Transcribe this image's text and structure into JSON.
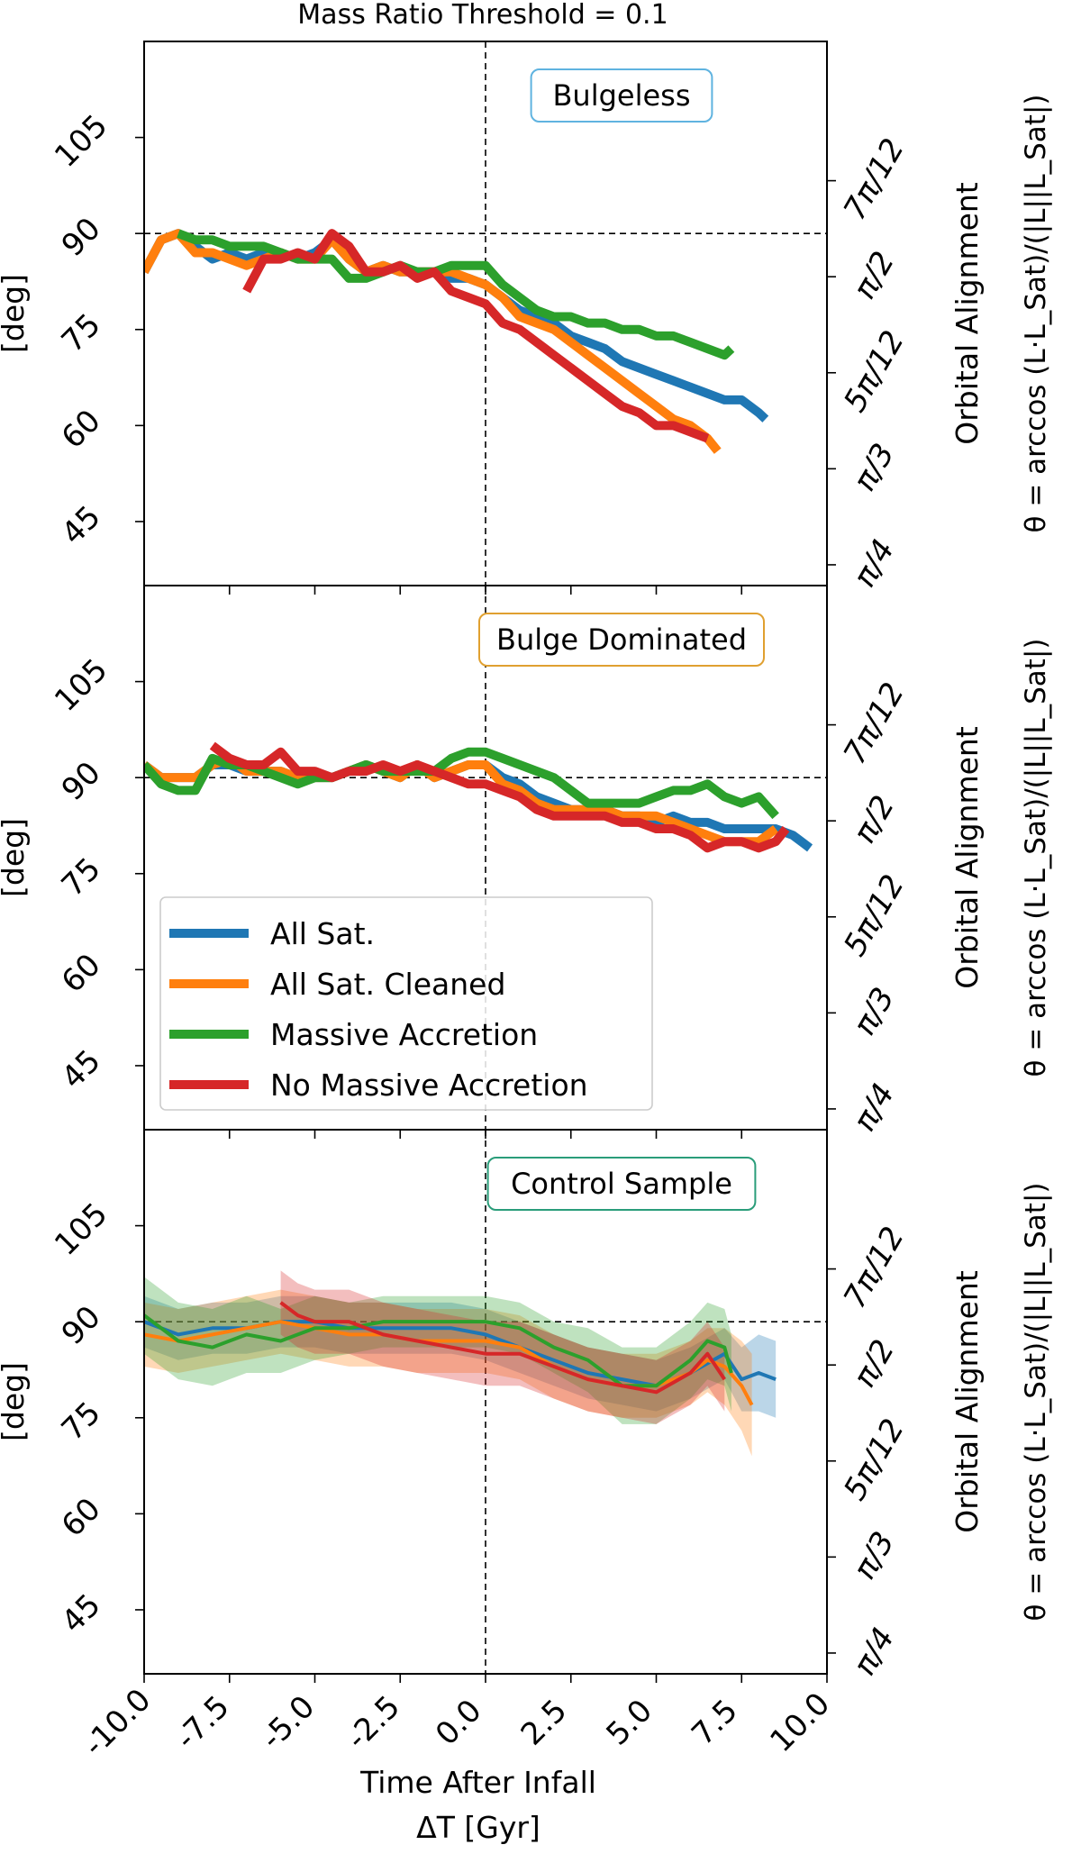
{
  "figure_title": "Mass Ratio Threshold = 0.1",
  "legend": {
    "placement": "lower-left of middle panel",
    "entries": [
      {
        "label": "All Sat.",
        "color": "#1f77b4"
      },
      {
        "label": "All Sat. Cleaned",
        "color": "#ff7f0e"
      },
      {
        "label": "Massive Accretion",
        "color": "#2ca02c"
      },
      {
        "label": "No Massive Accretion",
        "color": "#d62728"
      }
    ]
  },
  "chart_data": [
    {
      "type": "line",
      "panel_label": "Bulgeless",
      "panel_label_color": "#5fb3e0",
      "xlabel": "Time After Infall",
      "xunit": "ΔT [Gyr]",
      "ylabel": "[deg]",
      "ylabel_right": "Orbital Alignment",
      "ylabel_right_formula": "θ = arccos (L·L_Sat)/(|L||L_Sat|)",
      "xlim": [
        -10,
        10
      ],
      "ylim": [
        35,
        120
      ],
      "xticks": [
        -10.0,
        -7.5,
        -5.0,
        -2.5,
        0.0,
        2.5,
        5.0,
        7.5,
        10.0
      ],
      "yticks": [
        45,
        60,
        75,
        90,
        105
      ],
      "yticks_right": [
        {
          "value": 45,
          "label": "π/4"
        },
        {
          "value": 60,
          "label": "π/3"
        },
        {
          "value": 75,
          "label": "5π/12"
        },
        {
          "value": 90,
          "label": "π/2"
        },
        {
          "value": 105,
          "label": "7π/12"
        }
      ],
      "reference_lines": {
        "vertical_x": 0,
        "horizontal_y": 90
      },
      "grid": false,
      "series": [
        {
          "name": "All Sat.",
          "color": "#1f77b4",
          "x": [
            -10,
            -9.5,
            -9,
            -8.5,
            -8,
            -7.5,
            -7,
            -6.5,
            -6,
            -5.5,
            -5,
            -4.5,
            -4,
            -3.5,
            -3,
            -2.5,
            -2,
            -1.5,
            -1,
            -0.5,
            0,
            0.5,
            1,
            1.5,
            2,
            2.5,
            3,
            3.5,
            4,
            4.5,
            5,
            5.5,
            6,
            6.5,
            7,
            7.5,
            8,
            8.2
          ],
          "y": [
            84,
            89,
            90,
            88,
            86,
            87,
            86,
            87,
            87,
            86,
            87,
            89,
            86,
            84,
            85,
            84,
            84,
            84,
            83,
            83,
            82,
            80,
            78,
            77,
            76,
            74,
            73,
            72,
            70,
            69,
            68,
            67,
            66,
            65,
            64,
            64,
            62,
            61
          ]
        },
        {
          "name": "All Sat. Cleaned",
          "color": "#ff7f0e",
          "x": [
            -10,
            -9.5,
            -9,
            -8.5,
            -8,
            -7.5,
            -7,
            -6.5,
            -6,
            -5.5,
            -5,
            -4.5,
            -4,
            -3.5,
            -3,
            -2.5,
            -2,
            -1.5,
            -1,
            -0.5,
            0,
            0.5,
            1,
            1.5,
            2,
            2.5,
            3,
            3.5,
            4,
            4.5,
            5,
            5.5,
            6,
            6.5,
            6.8
          ],
          "y": [
            84,
            89,
            90,
            87,
            87,
            86,
            85,
            86,
            87,
            86,
            86,
            89,
            86,
            84,
            85,
            84,
            84,
            84,
            84,
            83,
            82,
            80,
            77,
            76,
            75,
            73,
            71,
            69,
            67,
            65,
            63,
            61,
            60,
            58,
            56
          ]
        },
        {
          "name": "Massive Accretion",
          "color": "#2ca02c",
          "x": [
            -9,
            -8.5,
            -8,
            -7.5,
            -7,
            -6.5,
            -6,
            -5.5,
            -5,
            -4.5,
            -4,
            -3.5,
            -3,
            -2.5,
            -2,
            -1.5,
            -1,
            -0.5,
            0,
            0.5,
            1,
            1.5,
            2,
            2.5,
            3,
            3.5,
            4,
            4.5,
            5,
            5.5,
            6,
            6.5,
            7,
            7.2
          ],
          "y": [
            90,
            89,
            89,
            88,
            88,
            88,
            87,
            86,
            86,
            86,
            83,
            83,
            84,
            85,
            84,
            84,
            85,
            85,
            85,
            82,
            80,
            78,
            77,
            77,
            76,
            76,
            75,
            75,
            74,
            74,
            73,
            72,
            71,
            72
          ]
        },
        {
          "name": "No Massive Accretion",
          "color": "#d62728",
          "x": [
            -7,
            -6.5,
            -6,
            -5.5,
            -5,
            -4.5,
            -4,
            -3.5,
            -3,
            -2.5,
            -2,
            -1.5,
            -1,
            -0.5,
            0,
            0.5,
            1,
            1.5,
            2,
            2.5,
            3,
            3.5,
            4,
            4.5,
            5,
            5.5,
            6,
            6.5
          ],
          "y": [
            81,
            86,
            86,
            87,
            86,
            90,
            88,
            84,
            84,
            85,
            83,
            84,
            81,
            80,
            79,
            76,
            75,
            73,
            71,
            69,
            67,
            65,
            63,
            62,
            60,
            60,
            59,
            58
          ]
        }
      ]
    },
    {
      "type": "line",
      "panel_label": "Bulge Dominated",
      "panel_label_color": "#e0a030",
      "xlabel": "Time After Infall",
      "xunit": "ΔT [Gyr]",
      "ylabel": "[deg]",
      "ylabel_right": "Orbital Alignment",
      "ylabel_right_formula": "θ = arccos (L·L_Sat)/(|L||L_Sat|)",
      "xlim": [
        -10,
        10
      ],
      "ylim": [
        35,
        120
      ],
      "xticks": [
        -10.0,
        -7.5,
        -5.0,
        -2.5,
        0.0,
        2.5,
        5.0,
        7.5,
        10.0
      ],
      "yticks": [
        45,
        60,
        75,
        90,
        105
      ],
      "yticks_right": [
        {
          "value": 45,
          "label": "π/4"
        },
        {
          "value": 60,
          "label": "π/3"
        },
        {
          "value": 75,
          "label": "5π/12"
        },
        {
          "value": 90,
          "label": "π/2"
        },
        {
          "value": 105,
          "label": "7π/12"
        }
      ],
      "reference_lines": {
        "vertical_x": 0,
        "horizontal_y": 90
      },
      "grid": false,
      "series": [
        {
          "name": "All Sat.",
          "color": "#1f77b4",
          "x": [
            -10,
            -9.5,
            -9,
            -8.5,
            -8,
            -7.5,
            -7,
            -6.5,
            -6,
            -5.5,
            -5,
            -4.5,
            -4,
            -3.5,
            -3,
            -2.5,
            -2,
            -1.5,
            -1,
            -0.5,
            0,
            0.5,
            1,
            1.5,
            2,
            2.5,
            3,
            3.5,
            4,
            4.5,
            5,
            5.5,
            6,
            6.5,
            7,
            7.5,
            8,
            8.5,
            9,
            9.5
          ],
          "y": [
            92,
            90,
            90,
            90,
            92,
            92,
            91,
            91,
            91,
            90,
            90,
            90,
            91,
            92,
            91,
            90,
            92,
            90,
            91,
            92,
            92,
            90,
            89,
            87,
            86,
            85,
            85,
            85,
            84,
            84,
            83,
            84,
            83,
            83,
            82,
            82,
            82,
            82,
            81,
            79
          ]
        },
        {
          "name": "All Sat. Cleaned",
          "color": "#ff7f0e",
          "x": [
            -10,
            -9.5,
            -9,
            -8.5,
            -8,
            -7.5,
            -7,
            -6.5,
            -6,
            -5.5,
            -5,
            -4.5,
            -4,
            -3.5,
            -3,
            -2.5,
            -2,
            -1.5,
            -1,
            -0.5,
            0,
            0.5,
            1,
            1.5,
            2,
            2.5,
            3,
            3.5,
            4,
            4.5,
            5,
            5.5,
            6,
            6.5,
            7,
            7.5,
            8,
            8.5
          ],
          "y": [
            92,
            90,
            90,
            90,
            92,
            93,
            91,
            91,
            91,
            90,
            90,
            90,
            91,
            92,
            91,
            90,
            92,
            90,
            91,
            92,
            92,
            89,
            88,
            86,
            85,
            85,
            85,
            85,
            84,
            84,
            84,
            83,
            82,
            81,
            80,
            80,
            80,
            82
          ]
        },
        {
          "name": "Massive Accretion",
          "color": "#2ca02c",
          "x": [
            -10,
            -9.5,
            -9,
            -8.5,
            -8,
            -7.5,
            -7,
            -6.5,
            -6,
            -5.5,
            -5,
            -4.5,
            -4,
            -3.5,
            -3,
            -2.5,
            -2,
            -1.5,
            -1,
            -0.5,
            0,
            0.5,
            1,
            1.5,
            2,
            2.5,
            3,
            3.5,
            4,
            4.5,
            5,
            5.5,
            6,
            6.5,
            7,
            7.5,
            8,
            8.5
          ],
          "y": [
            92,
            89,
            88,
            88,
            93,
            92,
            92,
            91,
            90,
            89,
            90,
            90,
            91,
            92,
            91,
            91,
            91,
            91,
            93,
            94,
            94,
            93,
            92,
            91,
            90,
            88,
            86,
            86,
            86,
            86,
            87,
            88,
            88,
            89,
            87,
            86,
            87,
            84
          ]
        },
        {
          "name": "No Massive Accretion",
          "color": "#d62728",
          "x": [
            -8,
            -7.5,
            -7,
            -6.5,
            -6,
            -5.5,
            -5,
            -4.5,
            -4,
            -3.5,
            -3,
            -2.5,
            -2,
            -1.5,
            -1,
            -0.5,
            0,
            0.5,
            1,
            1.5,
            2,
            2.5,
            3,
            3.5,
            4,
            4.5,
            5,
            5.5,
            6,
            6.5,
            7,
            7.5,
            8,
            8.5,
            8.8
          ],
          "y": [
            95,
            93,
            92,
            92,
            94,
            91,
            91,
            90,
            91,
            91,
            92,
            91,
            92,
            91,
            90,
            89,
            89,
            88,
            87,
            85,
            84,
            84,
            84,
            84,
            83,
            83,
            82,
            82,
            81,
            79,
            80,
            80,
            79,
            80,
            82
          ]
        }
      ]
    },
    {
      "type": "line",
      "panel_label": "Control Sample",
      "panel_label_color": "#2a9d7a",
      "xlabel": "Time After Infall",
      "xunit": "ΔT [Gyr]",
      "ylabel": "[deg]",
      "ylabel_right": "Orbital Alignment",
      "ylabel_right_formula": "θ = arccos (L·L_Sat)/(|L||L_Sat|)",
      "xlim": [
        -10,
        10
      ],
      "ylim": [
        35,
        120
      ],
      "xticks": [
        -10.0,
        -7.5,
        -5.0,
        -2.5,
        0.0,
        2.5,
        5.0,
        7.5,
        10.0
      ],
      "yticks": [
        45,
        60,
        75,
        90,
        105
      ],
      "yticks_right": [
        {
          "value": 45,
          "label": "π/4"
        },
        {
          "value": 60,
          "label": "π/3"
        },
        {
          "value": 75,
          "label": "5π/12"
        },
        {
          "value": 90,
          "label": "π/2"
        },
        {
          "value": 105,
          "label": "7π/12"
        }
      ],
      "reference_lines": {
        "vertical_x": 0,
        "horizontal_y": 90
      },
      "grid": false,
      "shaded_bands": true,
      "series": [
        {
          "name": "All Sat.",
          "color": "#1f77b4",
          "x": [
            -10,
            -9,
            -8,
            -7,
            -6,
            -5,
            -4,
            -3,
            -2,
            -1,
            0,
            1,
            2,
            3,
            4,
            5,
            6,
            7,
            7.5,
            8,
            8.5
          ],
          "y": [
            90,
            88,
            89,
            89,
            90,
            90,
            89,
            89,
            89,
            89,
            88,
            86,
            84,
            82,
            81,
            80,
            82,
            85,
            81,
            82,
            81
          ],
          "band": [
            4,
            4,
            4,
            4,
            4,
            4,
            4,
            4,
            4,
            4,
            4,
            4,
            4,
            4,
            4,
            4,
            4,
            4,
            5,
            6,
            6
          ]
        },
        {
          "name": "All Sat. Cleaned",
          "color": "#ff7f0e",
          "x": [
            -10,
            -9,
            -8,
            -7,
            -6,
            -5,
            -4,
            -3,
            -2,
            -1,
            0,
            1,
            2,
            3,
            4,
            5,
            6,
            6.5,
            7,
            7.5,
            7.8
          ],
          "y": [
            88,
            87,
            88,
            89,
            90,
            89,
            88,
            88,
            87,
            87,
            87,
            86,
            83,
            81,
            80,
            80,
            82,
            84,
            83,
            80,
            77
          ],
          "band": [
            5,
            5,
            5,
            5,
            5,
            5,
            5,
            5,
            5,
            5,
            5,
            5,
            5,
            5,
            5,
            5,
            5,
            5,
            6,
            7,
            8
          ]
        },
        {
          "name": "Massive Accretion",
          "color": "#2ca02c",
          "x": [
            -10,
            -9,
            -8,
            -7,
            -6,
            -5,
            -4,
            -3,
            -2,
            -1,
            0,
            1,
            2,
            3,
            4,
            5,
            6,
            6.5,
            7,
            7.2
          ],
          "y": [
            91,
            87,
            86,
            88,
            87,
            89,
            89,
            90,
            90,
            90,
            90,
            89,
            86,
            84,
            80,
            80,
            84,
            87,
            86,
            82
          ],
          "band": [
            6,
            6,
            6,
            6,
            5,
            5,
            4,
            4,
            4,
            4,
            4,
            4,
            4,
            5,
            6,
            6,
            6,
            6,
            6,
            6
          ]
        },
        {
          "name": "No Massive Accretion",
          "color": "#d62728",
          "x": [
            -6,
            -5.5,
            -5,
            -4,
            -3,
            -2,
            -1,
            0,
            1,
            2,
            3,
            4,
            5,
            6,
            6.5,
            7
          ],
          "y": [
            93,
            91,
            90,
            90,
            88,
            87,
            86,
            85,
            85,
            83,
            81,
            80,
            79,
            82,
            85,
            81
          ],
          "band": [
            5,
            5,
            5,
            5,
            5,
            5,
            5,
            5,
            5,
            5,
            5,
            5,
            5,
            5,
            5,
            5
          ]
        }
      ]
    }
  ]
}
